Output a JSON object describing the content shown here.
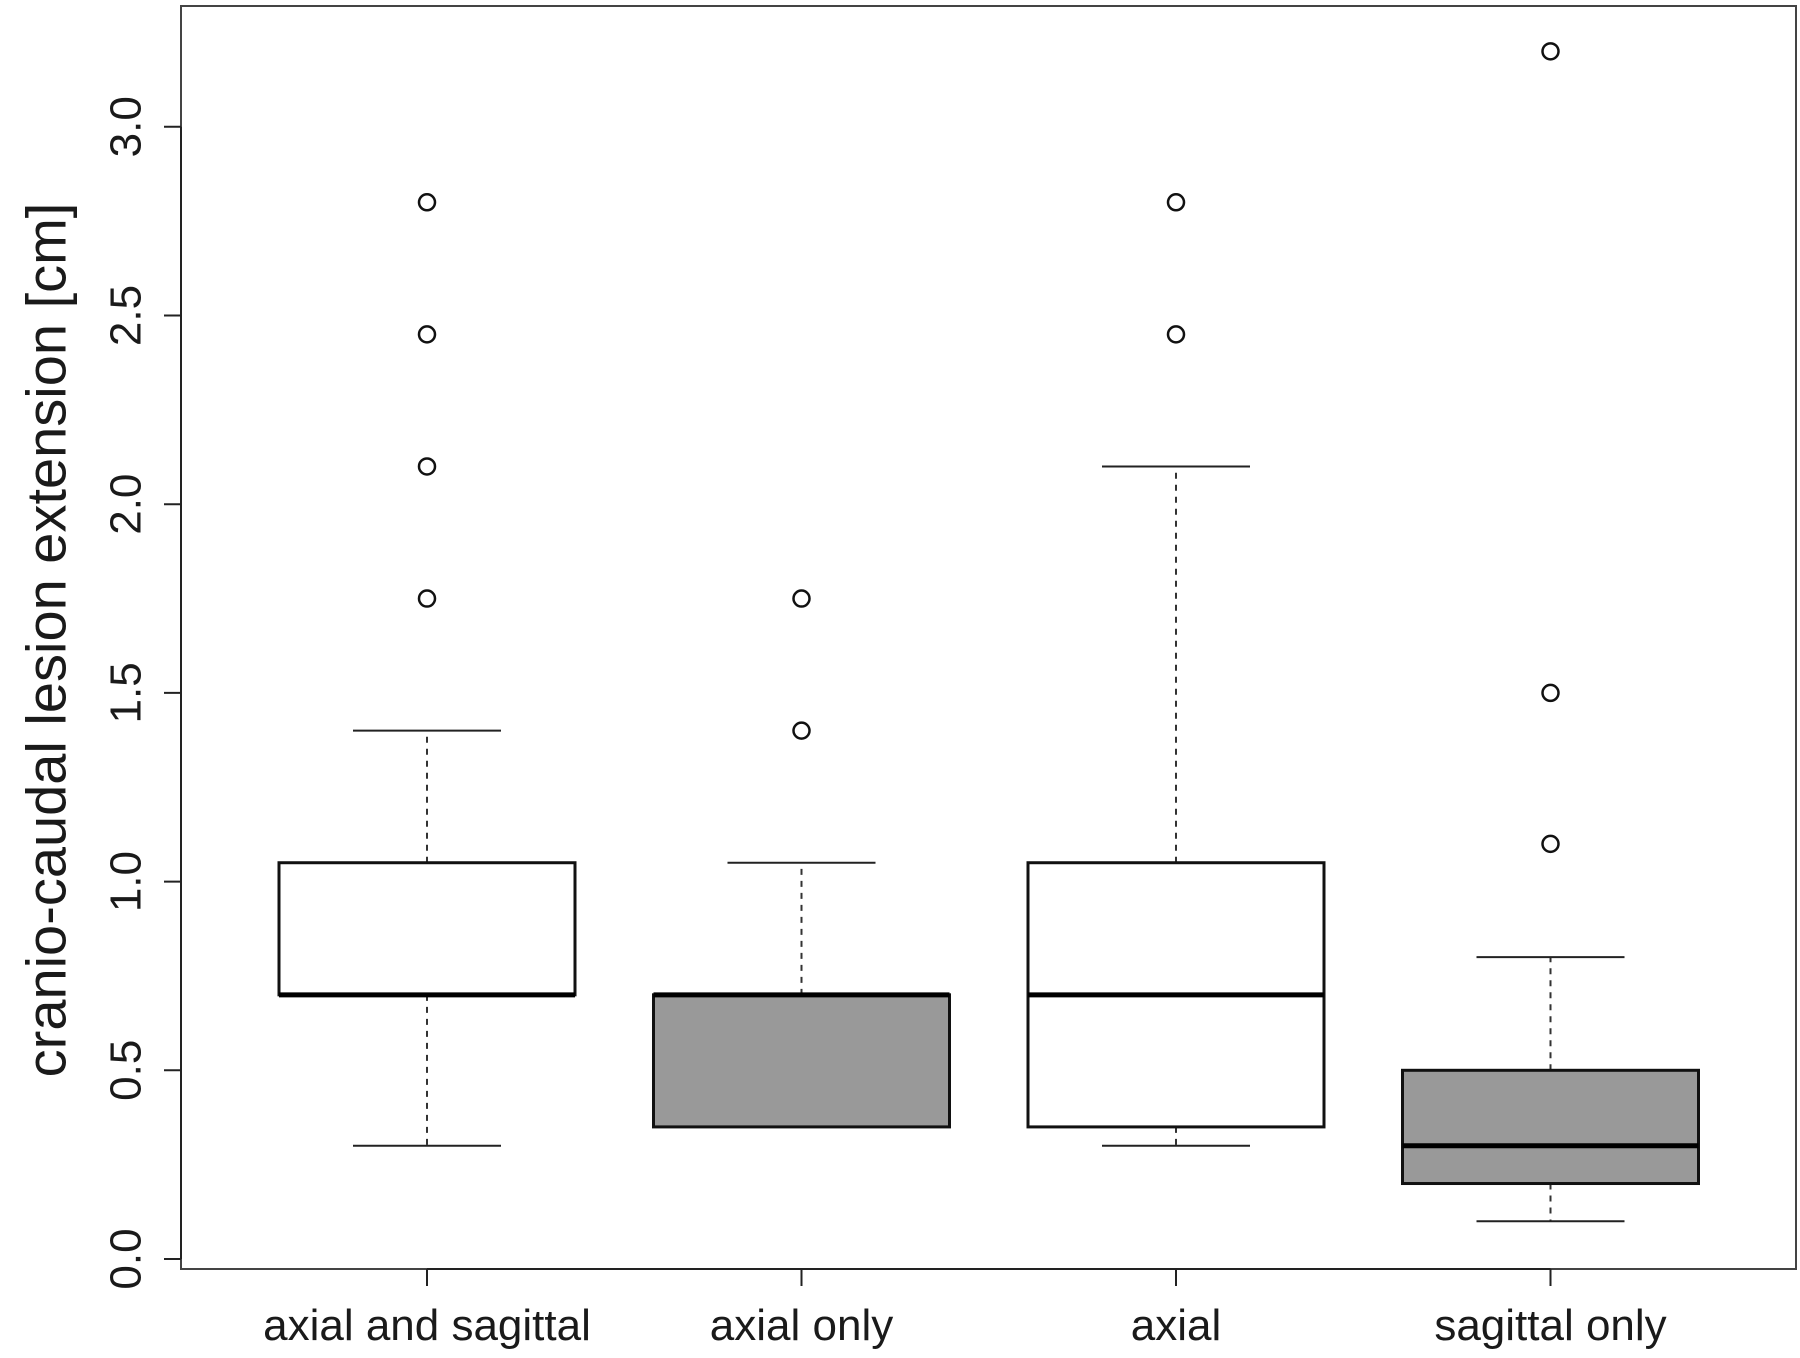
{
  "chart_data": {
    "type": "box",
    "title": "",
    "xlabel": "",
    "ylabel": "cranio-caudal lesion extension [cm]",
    "ylim": [
      0,
      3.2
    ],
    "yticks": [
      {
        "value": 0.0,
        "label": "0.0"
      },
      {
        "value": 0.5,
        "label": "0.5"
      },
      {
        "value": 1.0,
        "label": "1.0"
      },
      {
        "value": 1.5,
        "label": "1.5"
      },
      {
        "value": 2.0,
        "label": "2.0"
      },
      {
        "value": 2.5,
        "label": "2.5"
      },
      {
        "value": 3.0,
        "label": "3.0"
      }
    ],
    "grid": false,
    "legend": "none",
    "categories": [
      "axial and sagittal",
      "axial only",
      "axial",
      "sagittal only"
    ],
    "boxes": [
      {
        "category": "axial and sagittal",
        "fill": "#ffffff",
        "whisker_low": 0.3,
        "q1": 0.7,
        "median": 0.7,
        "q3": 1.05,
        "whisker_high": 1.4,
        "outliers": [
          1.75,
          2.1,
          2.45,
          2.8
        ]
      },
      {
        "category": "axial only",
        "fill": "#999999",
        "whisker_low": 0.35,
        "q1": 0.35,
        "median": 0.7,
        "q3": 0.7,
        "whisker_high": 1.05,
        "outliers": [
          1.4,
          1.75
        ]
      },
      {
        "category": "axial",
        "fill": "#ffffff",
        "whisker_low": 0.3,
        "q1": 0.35,
        "median": 0.7,
        "q3": 1.05,
        "whisker_high": 2.1,
        "outliers": [
          2.45,
          2.8
        ]
      },
      {
        "category": "sagittal only",
        "fill": "#999999",
        "whisker_low": 0.1,
        "q1": 0.2,
        "median": 0.3,
        "q3": 0.5,
        "whisker_high": 0.8,
        "outliers": [
          1.1,
          1.5,
          3.2
        ]
      }
    ]
  }
}
